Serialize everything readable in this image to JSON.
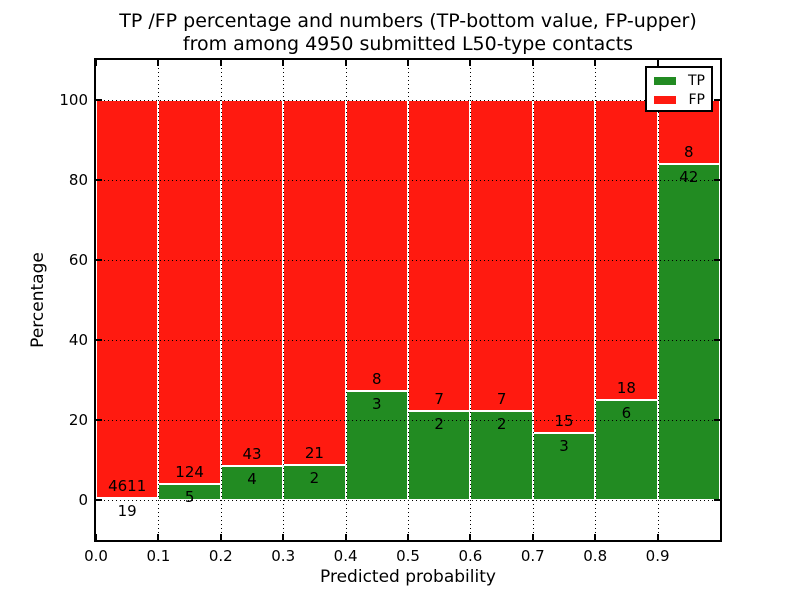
{
  "chart_data": {
    "type": "bar",
    "stacked": true,
    "title_lines": [
      "TP /FP percentage and numbers (TP-bottom value, FP-upper)",
      "from among 4950 submitted L50-type contacts"
    ],
    "xlabel": "Predicted probability",
    "ylabel": "Percentage",
    "xlim": [
      0.0,
      1.0
    ],
    "ylim": [
      -10,
      110
    ],
    "bin_width": 0.1,
    "xticks": [
      {
        "v": 0.0,
        "label": "0.0"
      },
      {
        "v": 0.1,
        "label": "0.1"
      },
      {
        "v": 0.2,
        "label": "0.2"
      },
      {
        "v": 0.3,
        "label": "0.3"
      },
      {
        "v": 0.4,
        "label": "0.4"
      },
      {
        "v": 0.5,
        "label": "0.5"
      },
      {
        "v": 0.6,
        "label": "0.6"
      },
      {
        "v": 0.7,
        "label": "0.7"
      },
      {
        "v": 0.8,
        "label": "0.8"
      },
      {
        "v": 0.9,
        "label": "0.9"
      }
    ],
    "yticks": [
      {
        "v": 0,
        "label": "0"
      },
      {
        "v": 20,
        "label": "20"
      },
      {
        "v": 40,
        "label": "40"
      },
      {
        "v": 60,
        "label": "60"
      },
      {
        "v": 80,
        "label": "80"
      },
      {
        "v": 100,
        "label": "100"
      }
    ],
    "grid": "dotted",
    "legend_position": "upper right",
    "series": [
      {
        "name": "TP",
        "color": "#228B22",
        "counts": [
          19,
          5,
          4,
          2,
          3,
          2,
          2,
          3,
          6,
          42
        ]
      },
      {
        "name": "FP",
        "color": "#ff1a10",
        "counts": [
          4611,
          124,
          43,
          21,
          8,
          7,
          7,
          15,
          18,
          8
        ]
      }
    ],
    "bins": [
      {
        "x0": 0.0,
        "tp": 19,
        "fp": 4611,
        "tp_pct": 0.41
      },
      {
        "x0": 0.1,
        "tp": 5,
        "fp": 124,
        "tp_pct": 3.88
      },
      {
        "x0": 0.2,
        "tp": 4,
        "fp": 43,
        "tp_pct": 8.51
      },
      {
        "x0": 0.3,
        "tp": 2,
        "fp": 21,
        "tp_pct": 8.7
      },
      {
        "x0": 0.4,
        "tp": 3,
        "fp": 8,
        "tp_pct": 27.27
      },
      {
        "x0": 0.5,
        "tp": 2,
        "fp": 7,
        "tp_pct": 22.22
      },
      {
        "x0": 0.6,
        "tp": 2,
        "fp": 7,
        "tp_pct": 22.22
      },
      {
        "x0": 0.7,
        "tp": 3,
        "fp": 15,
        "tp_pct": 16.67
      },
      {
        "x0": 0.8,
        "tp": 6,
        "fp": 18,
        "tp_pct": 25.0
      },
      {
        "x0": 0.9,
        "tp": 42,
        "fp": 8,
        "tp_pct": 84.0
      }
    ],
    "total_contacts": 4950
  }
}
